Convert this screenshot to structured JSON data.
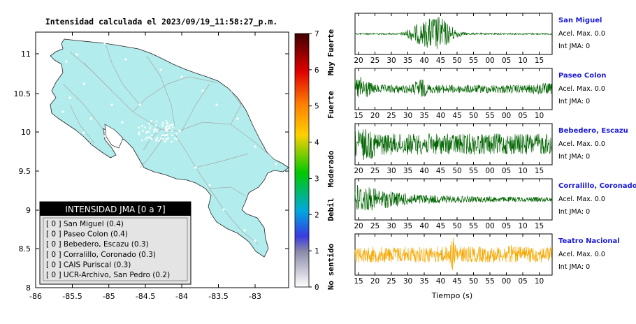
{
  "map": {
    "title": "Intensidad calculada el 2023/09/19_11:58:27_p.m.",
    "lon_ticks": [
      "-86",
      "-85.5",
      "-85",
      "-84.5",
      "-84",
      "-83.5",
      "-83"
    ],
    "lat_ticks": [
      "11",
      "10.5",
      "10",
      "9.5",
      "9",
      "8.5",
      "8"
    ],
    "land_color": "#b3ecec",
    "colors": {
      "frame": "#000000",
      "roads": "#aaaaaa",
      "station": "#ffffff"
    }
  },
  "legend": {
    "title": "INTENSIDAD JMA [0 a 7]",
    "items": [
      "[ 0 ]  San Miguel (0.4)",
      "[ 0 ]  Paseo Colon (0.4)",
      "[ 0 ]  Bebedero, Escazu (0.3)",
      "[ 0 ]  Corralillo, Coronado (0.3)",
      "[ 0 ]  CAIS Puriscal (0.3)",
      "[ 0 ]  UCR-Archivo, San Pedro (0.2)"
    ]
  },
  "colorbar": {
    "ticks": [
      "7",
      "6",
      "5",
      "4",
      "3",
      "2",
      "1",
      "0"
    ],
    "labels": [
      "Muy Fuerte",
      "Fuerte",
      "Moderado",
      "Debil",
      "No sentido"
    ]
  },
  "stations": [
    {
      "name": "San Miguel",
      "acel": "Acel. Max. 0.0",
      "jma": "Int JMA: 0",
      "color": "#006400",
      "ticks": [
        "20",
        "25",
        "30",
        "35",
        "40",
        "45",
        "50",
        "55",
        "00",
        "05",
        "10",
        "15"
      ],
      "start": 20,
      "amp_profile": "burst"
    },
    {
      "name": "Paseo Colon",
      "acel": "Acel. Max. 0.0",
      "jma": "Int JMA: 0",
      "color": "#006400",
      "ticks": [
        "15",
        "20",
        "25",
        "30",
        "35",
        "40",
        "45",
        "50",
        "55",
        "00",
        "05",
        "10"
      ],
      "start": 15,
      "amp_profile": "early-mid"
    },
    {
      "name": "Bebedero, Escazu",
      "acel": "Acel. Max. 0.0",
      "jma": "Int JMA: 0",
      "color": "#006400",
      "ticks": [
        "20",
        "25",
        "30",
        "35",
        "40",
        "45",
        "50",
        "55",
        "00",
        "05",
        "10",
        "15"
      ],
      "start": 16.5,
      "amp_profile": "noise"
    },
    {
      "name": "Corralillo, Coronado",
      "acel": "Acel. Max. 0.0",
      "jma": "Int JMA: 0",
      "color": "#006400",
      "ticks": [
        "20",
        "25",
        "30",
        "35",
        "40",
        "45",
        "50",
        "55",
        "00",
        "05",
        "10",
        "15"
      ],
      "start": 20,
      "amp_profile": "early"
    },
    {
      "name": "Teatro Nacional",
      "acel": "Acel. Max. 0.0",
      "jma": "Int JMA: 0",
      "color": "#f7a800",
      "ticks": [
        "15",
        "20",
        "25",
        "30",
        "35",
        "40",
        "45",
        "50",
        "55",
        "00",
        "05",
        "10"
      ],
      "start": 15,
      "amp_profile": "spike"
    }
  ],
  "time_axis_label": "Tiempo (s)",
  "chart_data": {
    "type": "line",
    "title": "Intensidad calculada el 2023/09/19_11:58:27_p.m.",
    "xlabel": "Tiempo (s)",
    "ylabel": "",
    "series": [
      {
        "name": "San Miguel",
        "acel_max": 0.0,
        "int_jma": 0,
        "intensity": 0.4
      },
      {
        "name": "Paseo Colon",
        "acel_max": 0.0,
        "int_jma": 0,
        "intensity": 0.4
      },
      {
        "name": "Bebedero, Escazu",
        "acel_max": 0.0,
        "int_jma": 0,
        "intensity": 0.3
      },
      {
        "name": "Corralillo, Coronado",
        "acel_max": 0.0,
        "int_jma": 0,
        "intensity": 0.3
      },
      {
        "name": "Teatro Nacional",
        "acel_max": 0.0,
        "int_jma": 0
      }
    ],
    "legend_intensities": [
      {
        "name": "San Miguel",
        "value": 0.4
      },
      {
        "name": "Paseo Colon",
        "value": 0.4
      },
      {
        "name": "Bebedero, Escazu",
        "value": 0.3
      },
      {
        "name": "Corralillo, Coronado",
        "value": 0.3
      },
      {
        "name": "CAIS Puriscal",
        "value": 0.3
      },
      {
        "name": "UCR-Archivo, San Pedro",
        "value": 0.2
      }
    ],
    "map_xlim": [
      -86,
      -82.5
    ],
    "map_ylim": [
      8,
      11.3
    ],
    "colorbar_range": [
      0,
      7
    ]
  }
}
